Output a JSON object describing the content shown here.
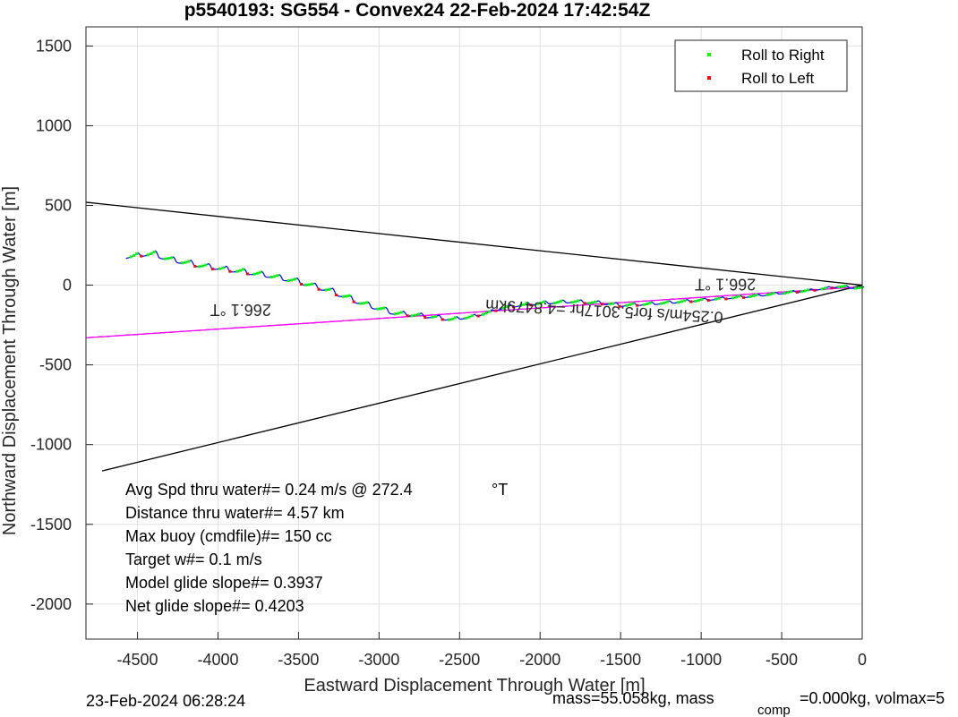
{
  "chart_data": {
    "type": "line",
    "title": "p5540193: SG554 - Convex24 22-Feb-2024 17:42:54Z",
    "xlabel": "Eastward Displacement Through Water [m]",
    "ylabel": "Northward Displacement Through Water [m]",
    "xlim": [
      -4820,
      0
    ],
    "ylim": [
      -2220,
      1620
    ],
    "xticks": [
      -4500,
      -4000,
      -3500,
      -3000,
      -2500,
      -2000,
      -1500,
      -1000,
      -500,
      0
    ],
    "yticks": [
      1500,
      1000,
      500,
      0,
      -500,
      -1000,
      -1500,
      -2000
    ],
    "grid": true,
    "legend": {
      "position": "top-right",
      "entries": [
        {
          "label": "Roll to Right",
          "color": "#00ff00"
        },
        {
          "label": "Roll to Left",
          "color": "#ff0000"
        }
      ]
    },
    "track": {
      "name": "",
      "color": "#0000ff",
      "points": [
        [
          0,
          -10
        ],
        [
          -150,
          0
        ],
        [
          -300,
          -20
        ],
        [
          -500,
          -40
        ],
        [
          -700,
          -60
        ],
        [
          -900,
          -75
        ],
        [
          -1100,
          -90
        ],
        [
          -1300,
          -105
        ],
        [
          -1500,
          -115
        ],
        [
          -1600,
          -100
        ],
        [
          -1800,
          -90
        ],
        [
          -2000,
          -100
        ],
        [
          -2200,
          -120
        ],
        [
          -2400,
          -180
        ],
        [
          -2550,
          -200
        ],
        [
          -2700,
          -180
        ],
        [
          -2900,
          -160
        ],
        [
          -3100,
          -100
        ],
        [
          -3300,
          -20
        ],
        [
          -3500,
          40
        ],
        [
          -3700,
          80
        ],
        [
          -3900,
          110
        ],
        [
          -4100,
          140
        ],
        [
          -4300,
          180
        ],
        [
          -4400,
          215
        ],
        [
          -4500,
          205
        ],
        [
          -4560,
          195
        ]
      ]
    },
    "current_line": {
      "color": "#ff00ff",
      "points": [
        [
          0,
          -10
        ],
        [
          -4820,
          -330
        ]
      ]
    },
    "cone_lines": [
      {
        "points": [
          [
            0,
            0
          ],
          [
            -4820,
            520
          ]
        ],
        "color": "#000000"
      },
      {
        "points": [
          [
            0,
            0
          ],
          [
            -4720,
            -1165
          ]
        ],
        "color": "#000000"
      }
    ],
    "annotations": [
      {
        "text": "266.1 °T",
        "x": -850,
        "y": 40,
        "rotation": 180
      },
      {
        "text": "266.1 °T",
        "x": -3860,
        "y": -120,
        "rotation": 180
      },
      {
        "text": "0.254m/s for5.3017hr =4.8479km",
        "x": -1600,
        "y": -130,
        "rotation": 183
      }
    ],
    "summary": [
      "Avg Spd thru water#=  0.24 m/s @ 272.4",
      "Distance thru water#=  4.57 km",
      "Max buoy (cmdfile)#= 150 cc",
      "Target w#= 0.1 m/s",
      "Model glide slope#= 0.3937",
      "Net glide slope#= 0.4203"
    ],
    "summary_unit": "°T"
  },
  "footer": {
    "left": "23-Feb-2024 06:28:24",
    "right_mass": "mass=55.058kg, mass",
    "right_sub": "comp",
    "right_rest": "=0.000kg, volmax=5"
  }
}
